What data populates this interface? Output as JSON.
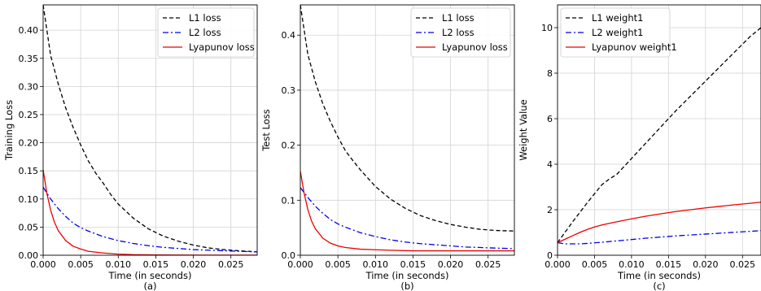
{
  "chart_data": [
    {
      "type": "line",
      "panel_label": "(a)",
      "xlabel": "Time (in seconds)",
      "ylabel": "Training Loss",
      "xlim": [
        0,
        0.0285
      ],
      "ylim": [
        0,
        0.445
      ],
      "xticks": [
        "0.000",
        "0.005",
        "0.010",
        "0.015",
        "0.020",
        "0.025"
      ],
      "yticks": [
        "0.00",
        "0.05",
        "0.10",
        "0.15",
        "0.20",
        "0.25",
        "0.30",
        "0.35",
        "0.40"
      ],
      "grid": true,
      "legend_position": "top-right",
      "series": [
        {
          "name": "L1 loss",
          "color": "#000000",
          "dash": "dashed",
          "x": [
            0,
            0.0005,
            0.001,
            0.002,
            0.003,
            0.004,
            0.005,
            0.006,
            0.007,
            0.008,
            0.009,
            0.01,
            0.012,
            0.014,
            0.016,
            0.018,
            0.02,
            0.022,
            0.024,
            0.026,
            0.0285
          ],
          "y": [
            0.445,
            0.4,
            0.355,
            0.305,
            0.262,
            0.227,
            0.196,
            0.168,
            0.146,
            0.128,
            0.108,
            0.091,
            0.066,
            0.047,
            0.034,
            0.025,
            0.018,
            0.013,
            0.01,
            0.008,
            0.006
          ]
        },
        {
          "name": "L2 loss",
          "color": "#0000ee",
          "dash": "dashdot",
          "x": [
            0,
            0.001,
            0.002,
            0.003,
            0.004,
            0.005,
            0.006,
            0.008,
            0.01,
            0.012,
            0.014,
            0.016,
            0.018,
            0.02,
            0.022,
            0.024,
            0.026,
            0.0285
          ],
          "y": [
            0.121,
            0.1,
            0.083,
            0.069,
            0.057,
            0.049,
            0.043,
            0.033,
            0.026,
            0.021,
            0.017,
            0.014,
            0.012,
            0.01,
            0.009,
            0.008,
            0.007,
            0.006
          ]
        },
        {
          "name": "Lyapunov loss",
          "color": "#ee0000",
          "dash": "solid",
          "x": [
            0,
            0.0005,
            0.001,
            0.0015,
            0.002,
            0.003,
            0.004,
            0.005,
            0.006,
            0.008,
            0.01,
            0.012,
            0.015,
            0.018,
            0.021,
            0.024,
            0.0285
          ],
          "y": [
            0.152,
            0.11,
            0.08,
            0.059,
            0.044,
            0.026,
            0.016,
            0.011,
            0.007,
            0.004,
            0.002,
            0.001,
            0.0005,
            0.0003,
            0.0002,
            0.0001,
            0.0001
          ]
        }
      ]
    },
    {
      "type": "line",
      "panel_label": "(b)",
      "xlabel": "Time (in seconds)",
      "ylabel": "Test Loss",
      "xlim": [
        0,
        0.0285
      ],
      "ylim": [
        0,
        0.455
      ],
      "xticks": [
        "0.000",
        "0.005",
        "0.010",
        "0.015",
        "0.020",
        "0.025"
      ],
      "yticks": [
        "0.0",
        "0.1",
        "0.2",
        "0.3",
        "0.4"
      ],
      "grid": true,
      "legend_position": "top-right",
      "series": [
        {
          "name": "L1 loss",
          "color": "#000000",
          "dash": "dashed",
          "x": [
            0,
            0.0005,
            0.001,
            0.002,
            0.003,
            0.004,
            0.005,
            0.006,
            0.007,
            0.008,
            0.009,
            0.01,
            0.012,
            0.014,
            0.016,
            0.018,
            0.02,
            0.022,
            0.024,
            0.026,
            0.0285
          ],
          "y": [
            0.455,
            0.41,
            0.365,
            0.315,
            0.275,
            0.243,
            0.215,
            0.19,
            0.172,
            0.155,
            0.14,
            0.125,
            0.102,
            0.085,
            0.072,
            0.063,
            0.056,
            0.051,
            0.047,
            0.045,
            0.044
          ]
        },
        {
          "name": "L2 loss",
          "color": "#0000ee",
          "dash": "dashdot",
          "x": [
            0,
            0.001,
            0.002,
            0.003,
            0.004,
            0.005,
            0.006,
            0.008,
            0.01,
            0.012,
            0.014,
            0.016,
            0.018,
            0.02,
            0.022,
            0.024,
            0.026,
            0.0285
          ],
          "y": [
            0.123,
            0.105,
            0.089,
            0.076,
            0.065,
            0.057,
            0.051,
            0.041,
            0.034,
            0.028,
            0.024,
            0.021,
            0.019,
            0.017,
            0.015,
            0.014,
            0.013,
            0.012
          ]
        },
        {
          "name": "Lyapunov loss",
          "color": "#ee0000",
          "dash": "solid",
          "x": [
            0,
            0.0005,
            0.001,
            0.0015,
            0.002,
            0.003,
            0.004,
            0.005,
            0.006,
            0.008,
            0.01,
            0.012,
            0.015,
            0.018,
            0.021,
            0.024,
            0.0285
          ],
          "y": [
            0.153,
            0.113,
            0.083,
            0.062,
            0.048,
            0.031,
            0.022,
            0.017,
            0.014,
            0.011,
            0.01,
            0.009,
            0.008,
            0.008,
            0.008,
            0.008,
            0.008
          ]
        }
      ]
    },
    {
      "type": "line",
      "panel_label": "(c)",
      "xlabel": "Time (in seconds)",
      "ylabel": "Weight Value",
      "xlim": [
        0,
        0.0275
      ],
      "ylim": [
        0,
        11.0
      ],
      "xticks": [
        "0.000",
        "0.005",
        "0.010",
        "0.015",
        "0.020",
        "0.025"
      ],
      "yticks": [
        "0",
        "2",
        "4",
        "6",
        "8",
        "10"
      ],
      "grid": true,
      "legend_position": "top-left",
      "series": [
        {
          "name": "L1 weight1",
          "color": "#000000",
          "dash": "dashed",
          "x": [
            0,
            0.002,
            0.004,
            0.006,
            0.007,
            0.008,
            0.01,
            0.012,
            0.014,
            0.016,
            0.018,
            0.02,
            0.022,
            0.024,
            0.026,
            0.0275
          ],
          "y": [
            0.55,
            1.45,
            2.3,
            3.1,
            3.35,
            3.55,
            4.25,
            4.95,
            5.65,
            6.35,
            7.0,
            7.65,
            8.3,
            8.95,
            9.6,
            10.0
          ]
        },
        {
          "name": "L2 weight1",
          "color": "#0000ee",
          "dash": "dashdot",
          "x": [
            0,
            0.001,
            0.002,
            0.003,
            0.004,
            0.006,
            0.008,
            0.01,
            0.012,
            0.014,
            0.016,
            0.018,
            0.02,
            0.022,
            0.024,
            0.026,
            0.0275
          ],
          "y": [
            0.55,
            0.5,
            0.5,
            0.5,
            0.52,
            0.57,
            0.63,
            0.69,
            0.75,
            0.8,
            0.85,
            0.89,
            0.93,
            0.97,
            1.01,
            1.05,
            1.08
          ]
        },
        {
          "name": "Lyapunov weight1",
          "color": "#ee0000",
          "dash": "solid",
          "x": [
            0,
            0.001,
            0.002,
            0.003,
            0.004,
            0.005,
            0.006,
            0.007,
            0.008,
            0.01,
            0.012,
            0.014,
            0.016,
            0.018,
            0.02,
            0.022,
            0.024,
            0.026,
            0.0275
          ],
          "y": [
            0.55,
            0.7,
            0.85,
            1.0,
            1.13,
            1.24,
            1.33,
            1.4,
            1.47,
            1.6,
            1.72,
            1.82,
            1.92,
            2.0,
            2.08,
            2.15,
            2.22,
            2.28,
            2.33
          ]
        }
      ]
    }
  ]
}
